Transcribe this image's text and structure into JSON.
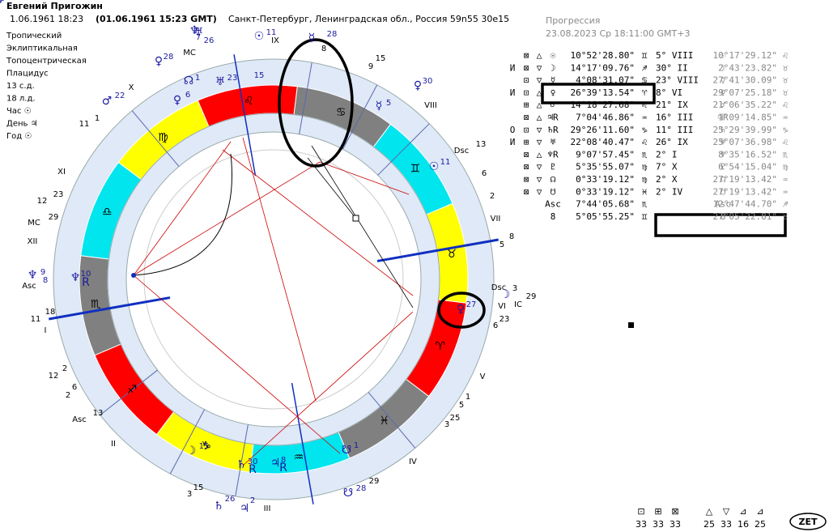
{
  "header": {
    "name": "Евгений Пригожин",
    "info": "1.06.1961   18:23",
    "gmt": "(01.06.1961  15:23 GMT)",
    "place": "Санкт-Петербург, Ленинградская обл., Россия 59n55  30e15"
  },
  "settings": [
    "Тропический",
    "Эклиптикальная",
    "Топоцентрическая",
    "Плацидус",
    "13 с.д.",
    "18 л.д.",
    "Час ☉",
    "День ♃",
    "Год ☉"
  ],
  "progression": {
    "title": "Прогрессия",
    "date": "23.08.2023 Ср 18:11:00 GMT+3"
  },
  "table": {
    "rows": [
      [
        "",
        "⊠",
        "△",
        "☉",
        "10°52'28.80\"",
        "♊",
        "5° VIII",
        "☉",
        "10°17'29.12\"",
        "♌"
      ],
      [
        "И",
        "⊠",
        "▽",
        "☽",
        "14°17'09.76\"",
        "♐",
        "30° II",
        "☽",
        "2°43'23.82\"",
        "♉"
      ],
      [
        "",
        "⊡",
        "▽",
        "☿",
        "4°08'31.07\"",
        "♋",
        "23° VIII",
        "☿",
        "27°41'30.09\"",
        "♉"
      ],
      [
        "И",
        "⊡",
        "△",
        "♀",
        "26°39'13.54\"",
        "♈",
        "8° VI",
        "♀",
        "29°07'25.18\"",
        "♉"
      ],
      [
        "",
        "⊞",
        "△",
        "♂",
        "14°18'27.68\"",
        "♌",
        "21° IX",
        "♂",
        "21°06'35.22\"",
        "♌"
      ],
      [
        "",
        "⊠",
        "△",
        "♃R",
        "7°04'46.86\"",
        "♒",
        "16° III",
        "♃R",
        "1°09'14.85\"",
        "♒"
      ],
      [
        "O",
        "⊡",
        "▽",
        "♄R",
        "29°26'11.60\"",
        "♑",
        "11° III",
        "♄",
        "25°29'39.99\"",
        "♑"
      ],
      [
        "И",
        "⊞",
        "▽",
        "♅",
        "22°08'40.47\"",
        "♌",
        "26° IX",
        "♅",
        "25°07'36.98\"",
        "♌"
      ],
      [
        "",
        "⊠",
        "△",
        "♆R",
        "9°07'57.45\"",
        "♏",
        "2° I",
        "♆",
        "8°35'16.52\"",
        "♏"
      ],
      [
        "",
        "⊠",
        "▽",
        "♇",
        "5°35'55.07\"",
        "♍",
        "7° X",
        "♇",
        "6°54'15.04\"",
        "♍"
      ],
      [
        "",
        "⊠",
        "▽",
        "☊",
        "0°33'19.12\"",
        "♍",
        "2° X",
        "☊",
        "27°19'13.42\"",
        "♒"
      ],
      [
        "",
        "⊠",
        "▽",
        "☋",
        "0°33'19.12\"",
        "♓",
        "2° IV",
        "☋",
        "27°19'13.42\"",
        "♒"
      ],
      [
        "",
        "",
        "",
        "Asc",
        "7°44'05.68\"",
        "♏",
        "",
        "Asc",
        "12°47'44.70\"",
        "♐"
      ],
      [
        "",
        "",
        "",
        "8",
        "5°05'55.25\"",
        "♊",
        "",
        "8",
        "27°05'22.81\"",
        "♉"
      ]
    ]
  },
  "wheel": {
    "signs": [
      "♈",
      "♉",
      "♊",
      "♋",
      "♌",
      "♍",
      "♎",
      "♏",
      "♐",
      "♑",
      "♒",
      "♓"
    ],
    "labels": [
      "IX",
      "8",
      "9",
      "15",
      "VIII",
      "Dsc",
      "13",
      "6",
      "2",
      "VII",
      "5",
      "8",
      "Dsc",
      "3",
      "VI",
      "IC",
      "29",
      "6",
      "23",
      "V",
      "5",
      "1",
      "3",
      "25",
      "IV",
      "29",
      "III",
      "3",
      "15",
      "II",
      "Asc",
      "13",
      "2",
      "6",
      "12",
      "2",
      "I",
      "11",
      "18",
      "Asc",
      "XII",
      "MC",
      "29",
      "12",
      "23",
      "XI",
      "11",
      "1",
      "X",
      "MC",
      "☿",
      "28",
      "☉",
      "11",
      "♂",
      "22",
      "☊",
      "1",
      "♅",
      "23",
      "15",
      "♀",
      "6",
      "♀",
      "30",
      "☿",
      "5",
      "☉",
      "11",
      "☽",
      "♀",
      "27",
      "♆",
      "10",
      "R",
      "♆",
      "9",
      "8",
      "☋",
      "1",
      "♄",
      "30",
      "R",
      "♃",
      "8",
      "R",
      "☽",
      "15",
      "♃",
      "2",
      "♄",
      "26",
      "☋",
      "28",
      "♅",
      "26",
      "♀",
      "28",
      "♆",
      "7",
      "♅",
      "5"
    ]
  },
  "stats": {
    "symbols": [
      "⊡",
      "⊞",
      "⊠",
      "△",
      "▽",
      "⊿",
      "⊿"
    ],
    "counts": [
      "33",
      "33",
      "33",
      "25",
      "33",
      "16",
      "25"
    ],
    "logo": "ZET"
  }
}
